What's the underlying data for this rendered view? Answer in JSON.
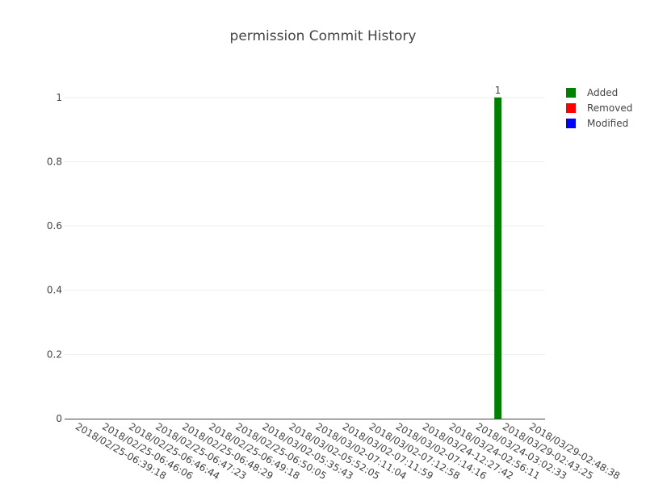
{
  "chart_data": {
    "type": "bar",
    "title": "permission Commit History",
    "xlabel": "",
    "ylabel": "",
    "categories": [
      "2018/02/25-06:39:18",
      "2018/02/25-06:46:06",
      "2018/02/25-06:46:44",
      "2018/02/25-06:47:23",
      "2018/02/25-06:48:29",
      "2018/02/25-06:49:18",
      "2018/02/25-06:50:05",
      "2018/03/02-05:35:43",
      "2018/03/02-05:52:05",
      "2018/03/02-07:11:04",
      "2018/03/02-07:11:59",
      "2018/03/02-07:12:58",
      "2018/03/02-07:14:16",
      "2018/03/24-12:27:42",
      "2018/03/24-02:56:11",
      "2018/03/24-03:02:33",
      "2018/03/29-02:43:25",
      "2018/03/29-02:48:38"
    ],
    "series": [
      {
        "name": "Added",
        "color": "#008000",
        "values": [
          0,
          0,
          0,
          0,
          0,
          0,
          0,
          0,
          0,
          0,
          0,
          0,
          0,
          0,
          0,
          0,
          1,
          0
        ]
      },
      {
        "name": "Removed",
        "color": "#ff0000",
        "values": [
          0,
          0,
          0,
          0,
          0,
          0,
          0,
          0,
          0,
          0,
          0,
          0,
          0,
          0,
          0,
          0,
          0,
          0
        ]
      },
      {
        "name": "Modified",
        "color": "#0000ff",
        "values": [
          0,
          0,
          0,
          0,
          0,
          0,
          0,
          0,
          0,
          0,
          0,
          0,
          0,
          0,
          0,
          0,
          0,
          0
        ]
      }
    ],
    "data_labels": [
      {
        "series": "Added",
        "category_index": 16,
        "text": "1"
      }
    ],
    "yticks": [
      "0",
      "0.2",
      "0.4",
      "0.6",
      "0.8",
      "1"
    ],
    "ylim": [
      0,
      1.1
    ],
    "grid": true,
    "legend_position": "top-right"
  }
}
